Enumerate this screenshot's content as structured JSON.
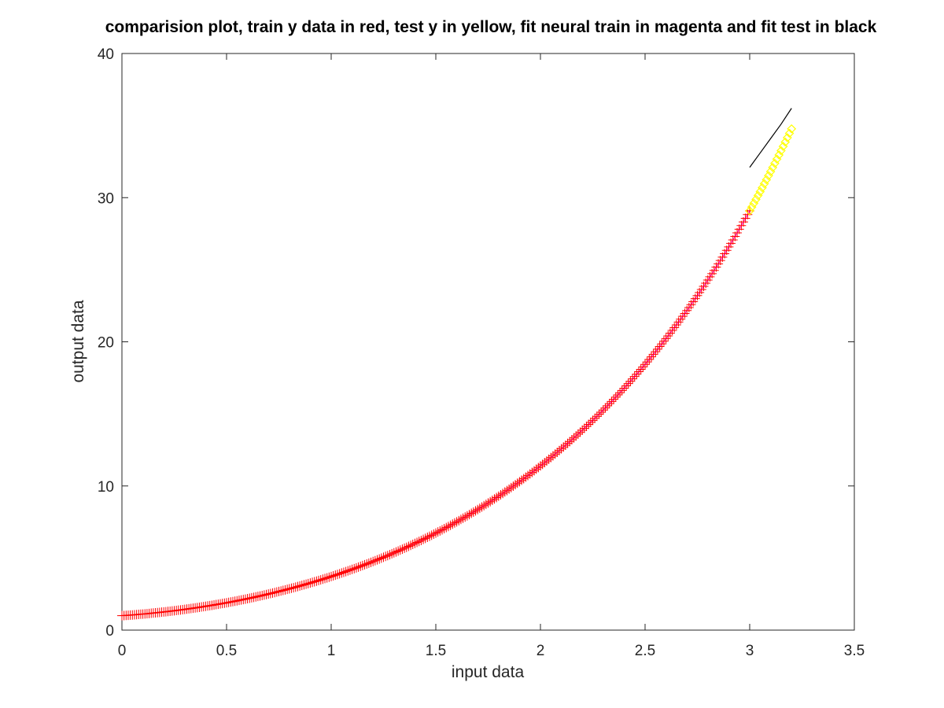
{
  "chart_data": {
    "type": "line",
    "title": "comparision plot, train y data in red, test y in yellow, fit neural train in magenta and fit test in black",
    "xlabel": "input data",
    "ylabel": "output data",
    "xlim": [
      0,
      3.5
    ],
    "ylim": [
      0,
      40
    ],
    "xticks": [
      0,
      0.5,
      1,
      1.5,
      2,
      2.5,
      3,
      3.5
    ],
    "xtick_labels": [
      "0",
      "0.5",
      "1",
      "1.5",
      "2",
      "2.5",
      "3",
      "3.5"
    ],
    "yticks": [
      0,
      10,
      20,
      30,
      40
    ],
    "ytick_labels": [
      "0",
      "10",
      "20",
      "30",
      "40"
    ],
    "grid": false,
    "series": [
      {
        "role": "train y data",
        "color": "#ff0000",
        "marker": "plus",
        "style": "markers",
        "x_range": [
          0,
          3.0
        ],
        "x_step": 0.01,
        "model": "y = exp(x) + x^2, sampled every 0.01 along x"
      },
      {
        "role": "fit neural train",
        "color": "#ff00ff",
        "style": "line",
        "x_range": [
          0,
          3.0
        ],
        "x_step": 0.02,
        "model": "follows train y data"
      },
      {
        "role": "test y",
        "color": "#ffff00",
        "marker": "diamond",
        "style": "markers",
        "x_range": [
          3.0,
          3.2
        ],
        "x_step": 0.01,
        "model": "y = exp(x) + x^2"
      },
      {
        "role": "fit test",
        "color": "#000000",
        "style": "line",
        "points": [
          [
            3.0,
            32.1
          ],
          [
            3.05,
            33.1
          ],
          [
            3.1,
            34.1
          ],
          [
            3.15,
            35.1
          ],
          [
            3.2,
            36.2
          ]
        ]
      }
    ]
  }
}
